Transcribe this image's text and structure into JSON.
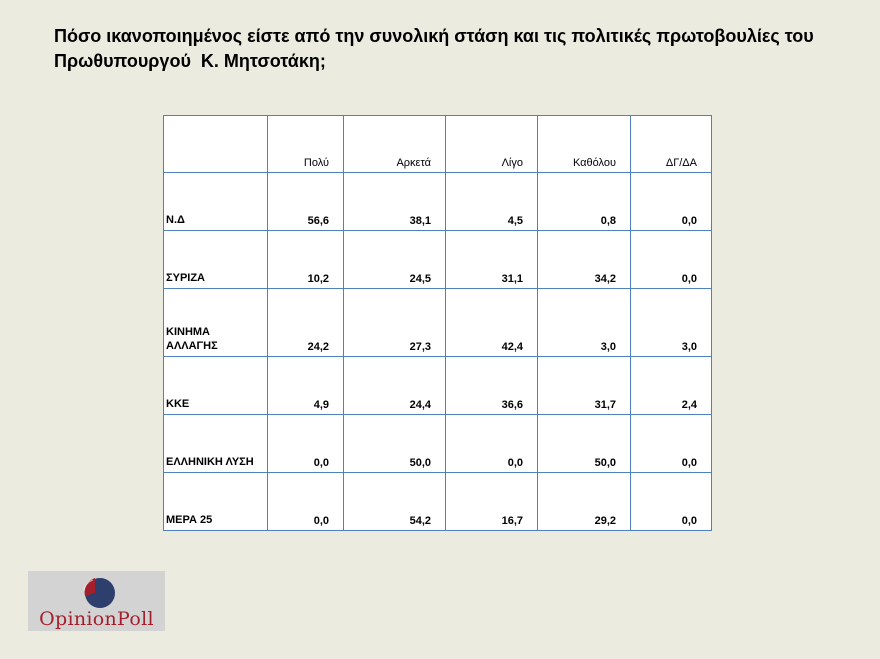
{
  "title": {
    "line1": "Πόσο ικανοποιημένος είστε από την συνολική στάση και τις πολιτικές πρωτοβουλίες του",
    "line2": "Πρωθυπουργού  Κ. Μητσοτάκη;"
  },
  "chart_data": {
    "type": "table",
    "columns": [
      "Πολύ",
      "Αρκετά",
      "Λίγο",
      "Καθόλου",
      "ΔΓ/ΔΑ"
    ],
    "rows": [
      {
        "label": "Ν.Δ",
        "values": [
          "56,6",
          "38,1",
          "4,5",
          "0,8",
          "0,0"
        ]
      },
      {
        "label": "ΣΥΡΙΖΑ",
        "values": [
          "10,2",
          "24,5",
          "31,1",
          "34,2",
          "0,0"
        ]
      },
      {
        "label": "ΚΙΝΗΜΑ ΑΛΛΑΓΗΣ",
        "label_lines": [
          "ΚΙΝΗΜΑ",
          "ΑΛΛΑΓΗΣ"
        ],
        "values": [
          "24,2",
          "27,3",
          "42,4",
          "3,0",
          "3,0"
        ]
      },
      {
        "label": "ΚΚΕ",
        "values": [
          "4,9",
          "24,4",
          "36,6",
          "31,7",
          "2,4"
        ]
      },
      {
        "label": "ΕΛΛΗΝΙΚΗ ΛΥΣΗ",
        "values": [
          "0,0",
          "50,0",
          "0,0",
          "50,0",
          "0,0"
        ]
      },
      {
        "label": "ΜΕΡΑ 25",
        "values": [
          "0,0",
          "54,2",
          "16,7",
          "29,2",
          "0,0"
        ]
      }
    ]
  },
  "logo": {
    "text_main": "Opinion",
    "text_accent": "Poll",
    "icon": "opinion-poll-logo-icon",
    "colors": {
      "red": "#a31f2c",
      "navy": "#2e3f6e",
      "text": "#a31f2c"
    }
  },
  "colors": {
    "background": "#ecebe0",
    "table_border": "#4f81bd",
    "table_fill": "#ffffff"
  }
}
